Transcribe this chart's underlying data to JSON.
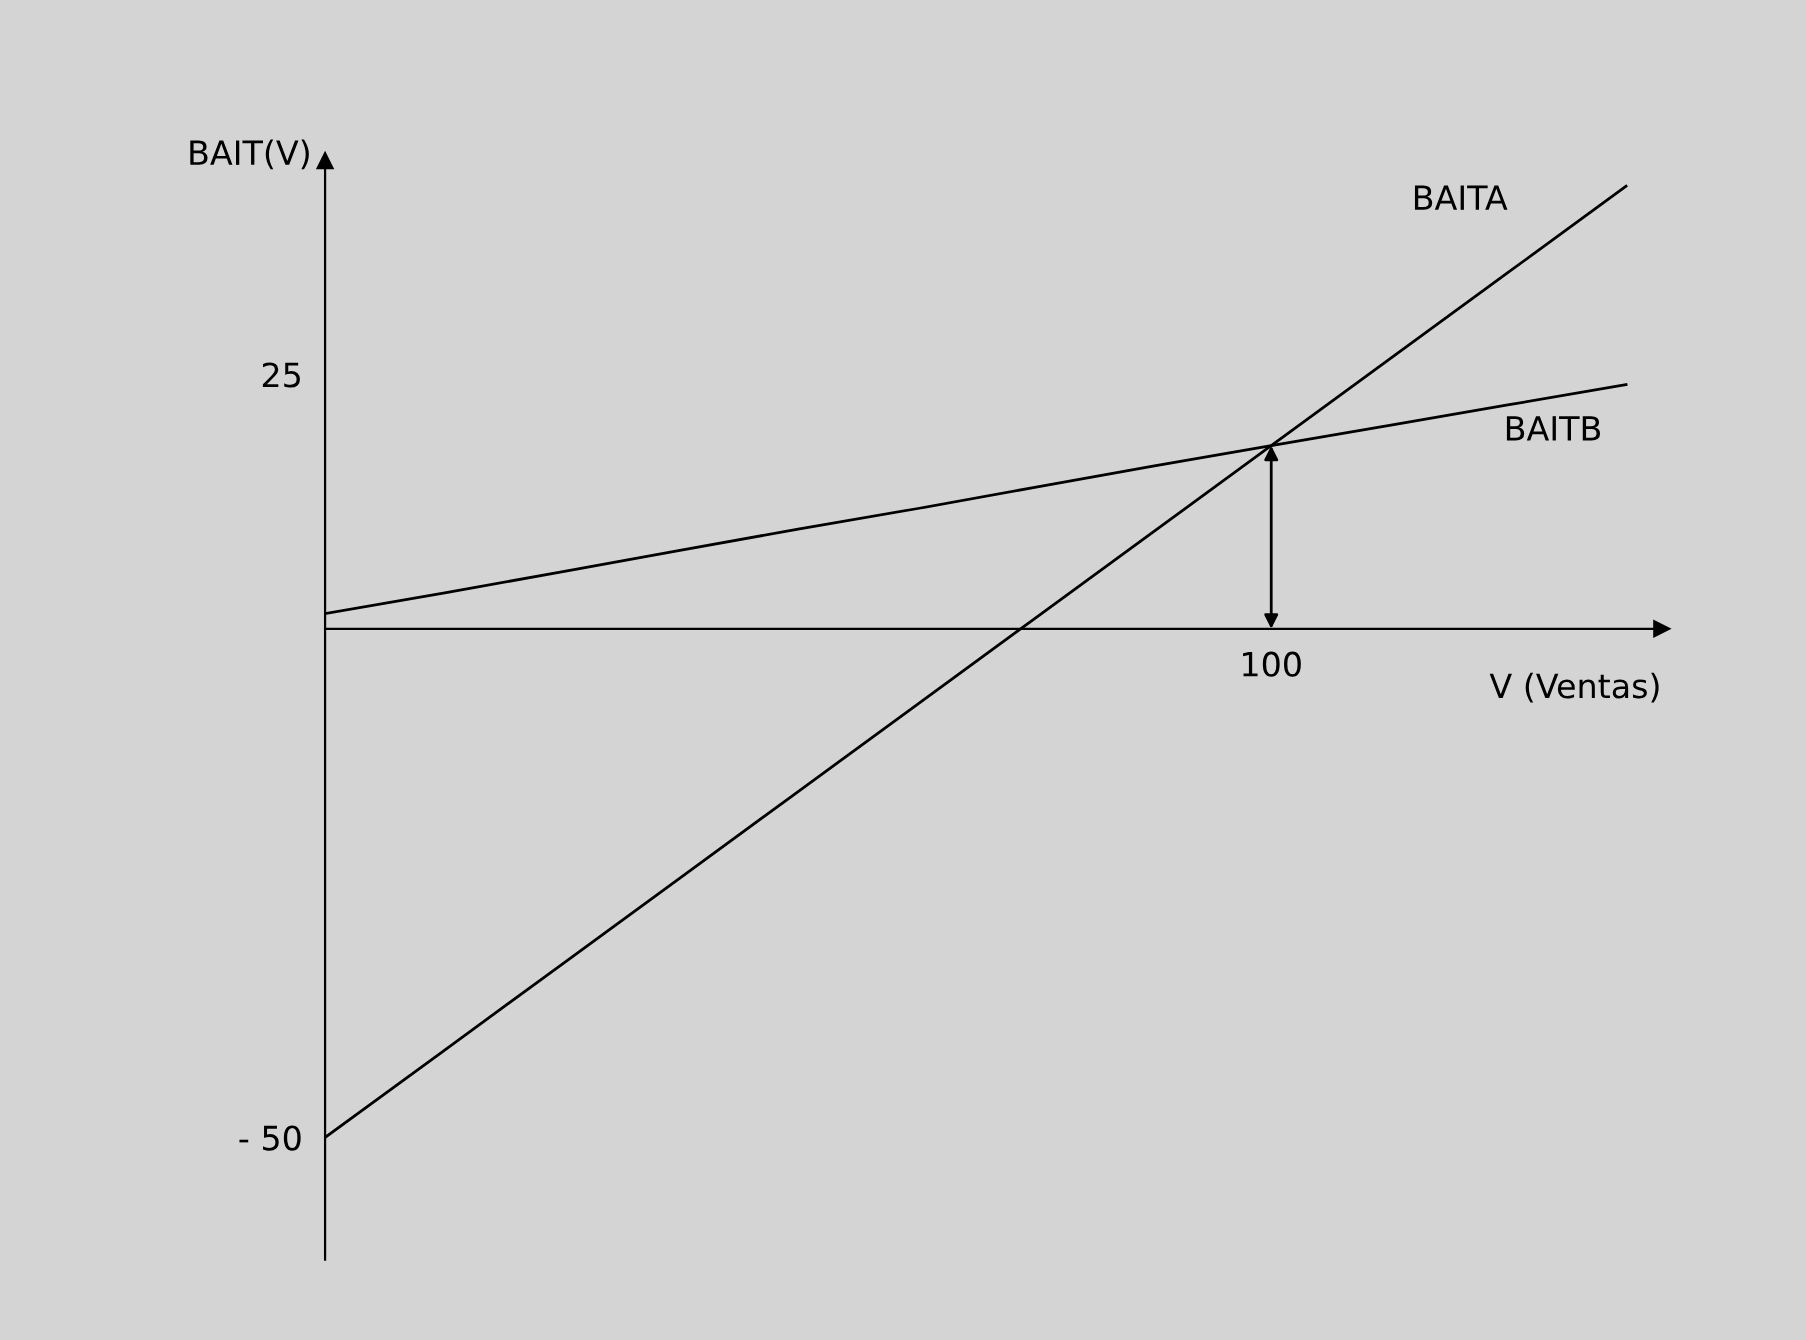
{
  "chart_data": {
    "type": "line",
    "xlabel": "V (Ventas)",
    "ylabel": "BAIT(V)",
    "categories": [
      null,
      null,
      null,
      null,
      null,
      null,
      null,
      null,
      "100",
      null,
      null,
      null
    ],
    "series": [
      {
        "name": "BAITA",
        "color": "#000000",
        "values": [
          -50,
          -41.5,
          -33,
          -24.5,
          -16,
          -7.5,
          1,
          9.5,
          18,
          26.5,
          35,
          43.5
        ]
      },
      {
        "name": "BAITB",
        "color": "#000000",
        "values": [
          1.5,
          3.5,
          5.6,
          7.7,
          9.8,
          11.8,
          13.9,
          16,
          18,
          20,
          22,
          24
        ]
      }
    ],
    "ylim": [
      -62,
      46
    ],
    "yticks": [
      {
        "value": 25,
        "label": "25"
      },
      {
        "value": -50,
        "label": "- 50"
      }
    ],
    "grid": false,
    "legend": false,
    "marker": "none",
    "line_style": "solid"
  }
}
